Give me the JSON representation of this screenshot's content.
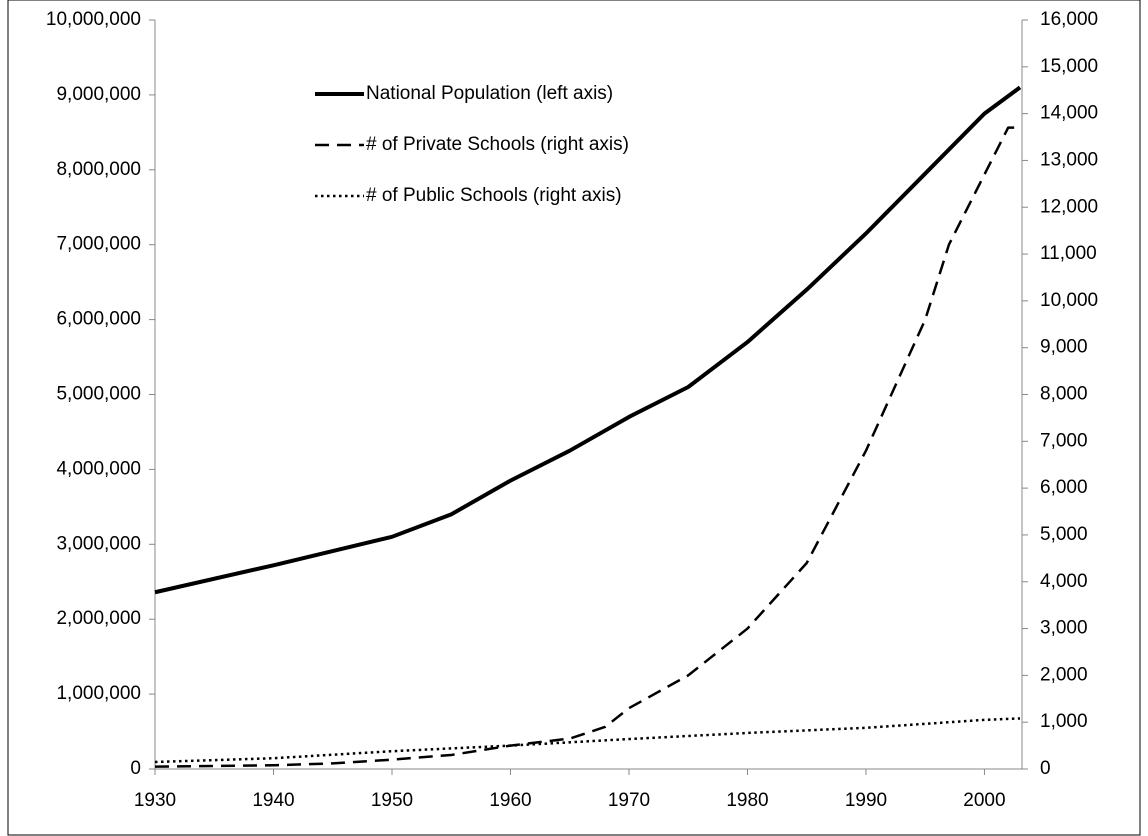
{
  "chart_data": {
    "type": "line",
    "xlim": [
      1930,
      2003
    ],
    "xticks": [
      1930,
      1940,
      1950,
      1960,
      1970,
      1980,
      1990,
      2000
    ],
    "ylim": [
      0,
      10000000
    ],
    "yticks": [
      0,
      {
        "value": 1000000,
        "label": "1,000,000"
      },
      {
        "value": 2000000,
        "label": "2,000,000"
      },
      {
        "value": 3000000,
        "label": "3,000,000"
      },
      {
        "value": 4000000,
        "label": "4,000,000"
      },
      {
        "value": 5000000,
        "label": "5,000,000"
      },
      {
        "value": 6000000,
        "label": "6,000,000"
      },
      {
        "value": 7000000,
        "label": "7,000,000"
      },
      {
        "value": 8000000,
        "label": "8,000,000"
      },
      {
        "value": 9000000,
        "label": "9,000,000"
      },
      {
        "value": 10000000,
        "label": "10,000,000"
      }
    ],
    "y2lim": [
      0,
      16000
    ],
    "y2ticks": [
      0,
      {
        "value": 1000,
        "label": "1,000"
      },
      {
        "value": 2000,
        "label": "2,000"
      },
      {
        "value": 3000,
        "label": "3,000"
      },
      {
        "value": 4000,
        "label": "4,000"
      },
      {
        "value": 5000,
        "label": "5,000"
      },
      {
        "value": 6000,
        "label": "6,000"
      },
      {
        "value": 7000,
        "label": "7,000"
      },
      {
        "value": 8000,
        "label": "8,000"
      },
      {
        "value": 9000,
        "label": "9,000"
      },
      {
        "value": 10000,
        "label": "10,000"
      },
      {
        "value": 11000,
        "label": "11,000"
      },
      {
        "value": 12000,
        "label": "12,000"
      },
      {
        "value": 13000,
        "label": "13,000"
      },
      {
        "value": 14000,
        "label": "14,000"
      },
      {
        "value": 15000,
        "label": "15,000"
      },
      {
        "value": 16000,
        "label": "16,000"
      }
    ],
    "grid": false,
    "series": [
      {
        "name": "National Population (left axis)",
        "color": "#000000",
        "dash": "solid",
        "width": 4,
        "x": [
          1930,
          1940,
          1950,
          1955,
          1960,
          1965,
          1970,
          1975,
          1980,
          1985,
          1990,
          1995,
          2000,
          2003
        ],
        "values": [
          2360000,
          2720000,
          3100000,
          3400000,
          3850000,
          4250000,
          4700000,
          5100000,
          5700000,
          6400000,
          7150000,
          7950000,
          8750000,
          9100000
        ]
      },
      {
        "name": "# of Private Schools (right axis)",
        "color": "#000000",
        "dash": "dashed",
        "width": 2.5,
        "axis": "y2",
        "x": [
          1930,
          1940,
          1945,
          1950,
          1955,
          1960,
          1965,
          1968,
          1970,
          1975,
          1980,
          1985,
          1990,
          1995,
          1997,
          2000,
          2002,
          2003
        ],
        "values": [
          50,
          80,
          120,
          200,
          300,
          500,
          650,
          900,
          1300,
          2000,
          3000,
          4400,
          6800,
          9600,
          11200,
          12700,
          13700,
          13700
        ]
      },
      {
        "name": "# of Public Schools (right axis)",
        "color": "#000000",
        "dash": "dotted",
        "width": 2.5,
        "axis": "y2",
        "x": [
          1930,
          1940,
          1950,
          1960,
          1970,
          1980,
          1990,
          2000,
          2003
        ],
        "values": [
          150,
          230,
          380,
          500,
          640,
          770,
          880,
          1050,
          1080
        ]
      }
    ]
  }
}
